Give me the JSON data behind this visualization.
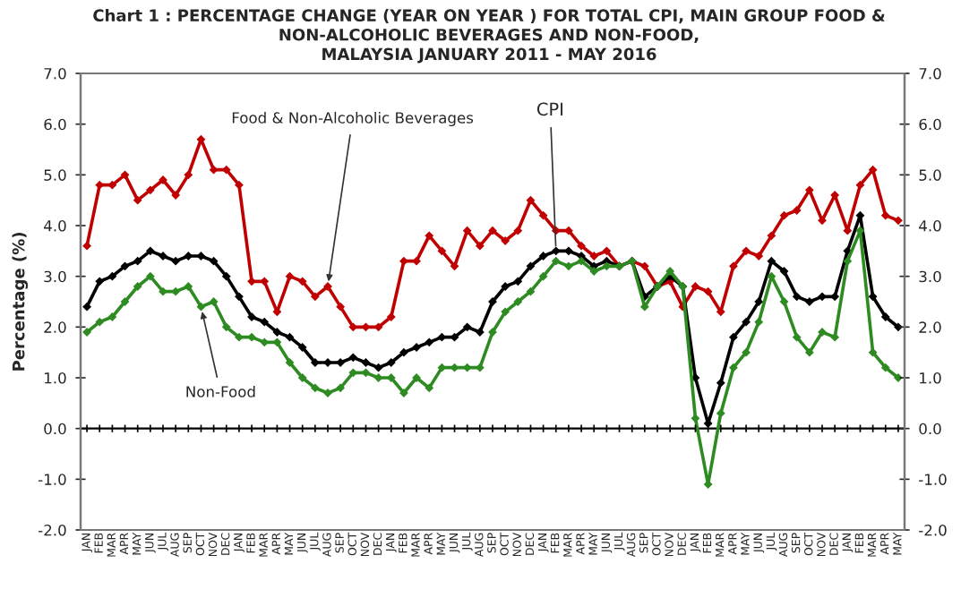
{
  "chart_data": {
    "type": "line",
    "title": "Chart 1 : PERCENTAGE CHANGE (YEAR ON YEAR ) FOR TOTAL CPI, MAIN GROUP FOOD &\nNON-ALCOHOLIC BEVERAGES AND NON-FOOD,\nMALAYSIA JANUARY 2011 - MAY 2016",
    "ylabel": "Percentage (%)",
    "categories": [
      "JAN",
      "FEB",
      "MAR",
      "APR",
      "MAY",
      "JUN",
      "JUL",
      "AUG",
      "SEP",
      "OCT",
      "NOV",
      "DEC",
      "JAN",
      "FEB",
      "MAR",
      "APR",
      "MAY",
      "JUN",
      "JUL",
      "AUG",
      "SEP",
      "OCT",
      "NOV",
      "DEC",
      "JAN",
      "FEB",
      "MAR",
      "APR",
      "MAY",
      "JUN",
      "JUL",
      "AUG",
      "SEP",
      "OCT",
      "NOV",
      "DEC",
      "JAN",
      "FEB",
      "MAR",
      "APR",
      "MAY",
      "JUN",
      "JUL",
      "AUG",
      "SEP",
      "OCT",
      "NOV",
      "DEC",
      "JAN",
      "FEB",
      "MAR",
      "APR",
      "MAY",
      "JUN",
      "JUL",
      "AUG",
      "SEP",
      "OCT",
      "NOV",
      "DEC",
      "JAN",
      "FEB",
      "MAR",
      "APR",
      "MAY"
    ],
    "series": [
      {
        "name": "Food & Non-Alcoholic Beverages",
        "color": "#c00000",
        "values": [
          3.6,
          4.8,
          4.8,
          5.0,
          4.5,
          4.7,
          4.9,
          4.6,
          5.0,
          5.7,
          5.1,
          5.1,
          4.8,
          2.9,
          2.9,
          2.3,
          3.0,
          2.9,
          2.6,
          2.8,
          2.4,
          2.0,
          2.0,
          2.0,
          2.2,
          3.3,
          3.3,
          3.8,
          3.5,
          3.2,
          3.9,
          3.6,
          3.9,
          3.7,
          3.9,
          4.5,
          4.2,
          3.9,
          3.9,
          3.6,
          3.4,
          3.5,
          3.2,
          3.3,
          3.2,
          2.8,
          2.9,
          2.4,
          2.8,
          2.7,
          2.3,
          3.2,
          3.5,
          3.4,
          3.8,
          4.2,
          4.3,
          4.7,
          4.1,
          4.6,
          3.9,
          4.8,
          5.1,
          4.2,
          4.1
        ]
      },
      {
        "name": "CPI",
        "color": "#000000",
        "values": [
          2.4,
          2.9,
          3.0,
          3.2,
          3.3,
          3.5,
          3.4,
          3.3,
          3.4,
          3.4,
          3.3,
          3.0,
          2.6,
          2.2,
          2.1,
          1.9,
          1.8,
          1.6,
          1.3,
          1.3,
          1.3,
          1.4,
          1.3,
          1.2,
          1.3,
          1.5,
          1.6,
          1.7,
          1.8,
          1.8,
          2.0,
          1.9,
          2.5,
          2.8,
          2.9,
          3.2,
          3.4,
          3.5,
          3.5,
          3.4,
          3.2,
          3.3,
          3.2,
          3.3,
          2.6,
          2.8,
          3.0,
          2.8,
          1.0,
          0.1,
          0.9,
          1.8,
          2.1,
          2.5,
          3.3,
          3.1,
          2.6,
          2.5,
          2.6,
          2.6,
          3.5,
          4.2,
          2.6,
          2.2,
          2.0
        ]
      },
      {
        "name": "Non-Food",
        "color": "#2e8b22",
        "values": [
          1.9,
          2.1,
          2.2,
          2.5,
          2.8,
          3.0,
          2.7,
          2.7,
          2.8,
          2.4,
          2.5,
          2.0,
          1.8,
          1.8,
          1.7,
          1.7,
          1.3,
          1.0,
          0.8,
          0.7,
          0.8,
          1.1,
          1.1,
          1.0,
          1.0,
          0.7,
          1.0,
          0.8,
          1.2,
          1.2,
          1.2,
          1.2,
          1.9,
          2.3,
          2.5,
          2.7,
          3.0,
          3.3,
          3.2,
          3.3,
          3.1,
          3.2,
          3.2,
          3.3,
          2.4,
          2.8,
          3.1,
          2.8,
          0.2,
          -1.1,
          0.3,
          1.2,
          1.5,
          2.1,
          3.0,
          2.5,
          1.8,
          1.5,
          1.9,
          1.8,
          3.3,
          3.9,
          1.5,
          1.2,
          1.0
        ]
      }
    ],
    "ylim": [
      -2,
      7
    ],
    "yticks": [
      {
        "value": -2,
        "label": "-2.0"
      },
      {
        "value": -1,
        "label": "-1.0"
      },
      {
        "value": 0,
        "label": "0.0"
      },
      {
        "value": 1,
        "label": "1.0"
      },
      {
        "value": 2,
        "label": "2.0"
      },
      {
        "value": 3,
        "label": "3.0"
      },
      {
        "value": 4,
        "label": "4.0"
      },
      {
        "value": 5,
        "label": "5.0"
      },
      {
        "value": 6,
        "label": "6.0"
      },
      {
        "value": 7,
        "label": "7.0"
      }
    ],
    "y2lim": [
      -2,
      7
    ],
    "y2ticks": [
      {
        "value": -2,
        "label": "-2.0"
      },
      {
        "value": -1,
        "label": "-1.0"
      },
      {
        "value": 0,
        "label": "0.0"
      },
      {
        "value": 1,
        "label": "1.0"
      },
      {
        "value": 2,
        "label": "2.0"
      },
      {
        "value": 3,
        "label": "3.0"
      },
      {
        "value": 4,
        "label": "4.0"
      },
      {
        "value": 5,
        "label": "5.0"
      },
      {
        "value": 6,
        "label": "6.0"
      },
      {
        "value": 7,
        "label": "7.0"
      }
    ],
    "ref_lines": [
      {
        "axis": "y",
        "value": 0,
        "color": "#000000"
      }
    ],
    "grid": false,
    "legend": false,
    "marker": "diamond",
    "line_style": "solid"
  }
}
